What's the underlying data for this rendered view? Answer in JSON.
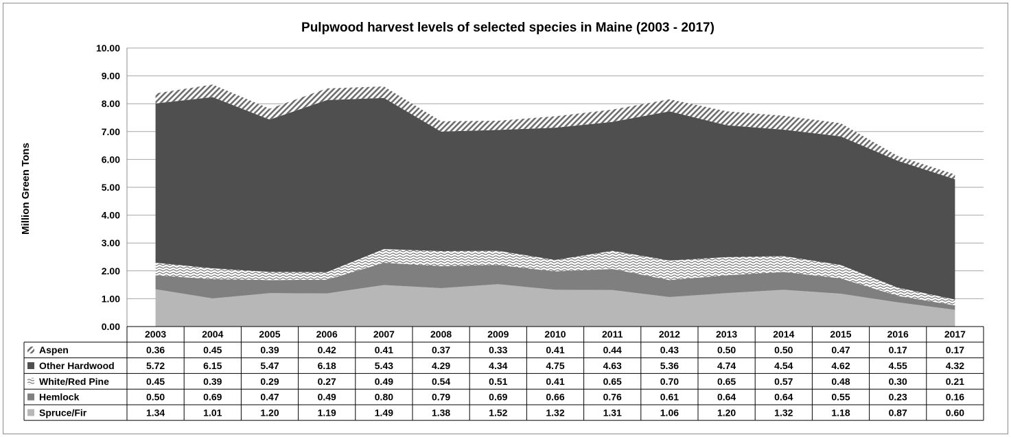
{
  "chart_data": {
    "type": "area",
    "stacked": true,
    "title": "Pulpwood harvest levels of selected species in Maine (2003 - 2017)",
    "ylabel": "Million Green Tons",
    "ylim": [
      0,
      10
    ],
    "yticks": [
      "0.00",
      "1.00",
      "2.00",
      "3.00",
      "4.00",
      "5.00",
      "6.00",
      "7.00",
      "8.00",
      "9.00",
      "10.00"
    ],
    "grid": true,
    "legend": "data table rows",
    "categories": [
      "2003",
      "2004",
      "2005",
      "2006",
      "2007",
      "2008",
      "2009",
      "2010",
      "2011",
      "2012",
      "2013",
      "2014",
      "2015",
      "2016",
      "2017"
    ],
    "series": [
      {
        "name": "Aspen",
        "color": "#7f7f7f",
        "pattern": "diagonal-hatch",
        "values": [
          0.36,
          0.45,
          0.39,
          0.42,
          0.41,
          0.37,
          0.33,
          0.41,
          0.44,
          0.43,
          0.5,
          0.5,
          0.47,
          0.17,
          0.17
        ],
        "labels": [
          "0.36",
          "0.45",
          "0.39",
          "0.42",
          "0.41",
          "0.37",
          "0.33",
          "0.41",
          "0.44",
          "0.43",
          "0.50",
          "0.50",
          "0.47",
          "0.17",
          "0.17"
        ]
      },
      {
        "name": "Other Hardwood",
        "color": "#4f4f4f",
        "pattern": "solid",
        "values": [
          5.72,
          6.15,
          5.47,
          6.18,
          5.43,
          4.29,
          4.34,
          4.75,
          4.63,
          5.36,
          4.74,
          4.54,
          4.62,
          4.55,
          4.32
        ],
        "labels": [
          "5.72",
          "6.15",
          "5.47",
          "6.18",
          "5.43",
          "4.29",
          "4.34",
          "4.75",
          "4.63",
          "5.36",
          "4.74",
          "4.54",
          "4.62",
          "4.55",
          "4.32"
        ]
      },
      {
        "name": "White/Red Pine",
        "color": "#9a9a9a",
        "pattern": "wave",
        "values": [
          0.45,
          0.39,
          0.29,
          0.27,
          0.49,
          0.54,
          0.51,
          0.41,
          0.65,
          0.7,
          0.65,
          0.57,
          0.48,
          0.3,
          0.21
        ],
        "labels": [
          "0.45",
          "0.39",
          "0.29",
          "0.27",
          "0.49",
          "0.54",
          "0.51",
          "0.41",
          "0.65",
          "0.70",
          "0.65",
          "0.57",
          "0.48",
          "0.30",
          "0.21"
        ]
      },
      {
        "name": "Hemlock",
        "color": "#7f7f7f",
        "pattern": "solid",
        "values": [
          0.5,
          0.69,
          0.47,
          0.49,
          0.8,
          0.79,
          0.69,
          0.66,
          0.76,
          0.61,
          0.64,
          0.64,
          0.55,
          0.23,
          0.16
        ],
        "labels": [
          "0.50",
          "0.69",
          "0.47",
          "0.49",
          "0.80",
          "0.79",
          "0.69",
          "0.66",
          "0.76",
          "0.61",
          "0.64",
          "0.64",
          "0.55",
          "0.23",
          "0.16"
        ]
      },
      {
        "name": "Spruce/Fir",
        "color": "#b7b7b7",
        "pattern": "solid",
        "values": [
          1.34,
          1.01,
          1.2,
          1.19,
          1.49,
          1.38,
          1.52,
          1.32,
          1.31,
          1.06,
          1.2,
          1.32,
          1.18,
          0.87,
          0.6
        ],
        "labels": [
          "1.34",
          "1.01",
          "1.20",
          "1.19",
          "1.49",
          "1.38",
          "1.52",
          "1.32",
          "1.31",
          "1.06",
          "1.20",
          "1.32",
          "1.18",
          "0.87",
          "0.60"
        ]
      }
    ]
  }
}
